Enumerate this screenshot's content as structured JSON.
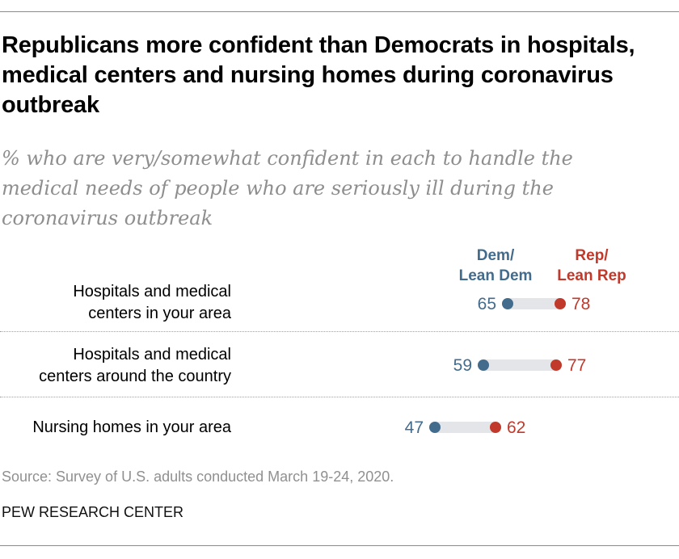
{
  "title": "Republicans more confident than Democrats in hospitals, medical centers and nursing homes during coronavirus outbreak",
  "subtitle": "% who are very/somewhat confident in each to handle the medical needs of people who are seriously ill during the coronavirus outbreak",
  "colors": {
    "dem": "#436b8c",
    "rep": "#c0392b",
    "bar": "#e3e5e8"
  },
  "legend": {
    "dem_line1": "Dem/",
    "dem_line2": "Lean Dem",
    "rep_line1": "Rep/",
    "rep_line2": "Lean Rep"
  },
  "source": "Source: Survey of U.S. adults conducted March 19-24, 2020.",
  "org": "PEW RESEARCH CENTER",
  "chart_data": {
    "type": "dot-plot",
    "title": "Republicans more confident than Democrats in hospitals, medical centers and nursing homes during coronavirus outbreak",
    "categories": [
      "Hospitals and medical centers in your area",
      "Hospitals and medical centers around the country",
      "Nursing homes in your area"
    ],
    "category_lines": [
      [
        "Hospitals and medical",
        "centers in your area"
      ],
      [
        "Hospitals and medical",
        "centers around the country"
      ],
      [
        "Nursing homes in your area"
      ]
    ],
    "series": [
      {
        "name": "Dem/Lean Dem",
        "values": [
          65,
          59,
          47
        ]
      },
      {
        "name": "Rep/Lean Rep",
        "values": [
          78,
          77,
          62
        ]
      }
    ],
    "unit": "%"
  }
}
